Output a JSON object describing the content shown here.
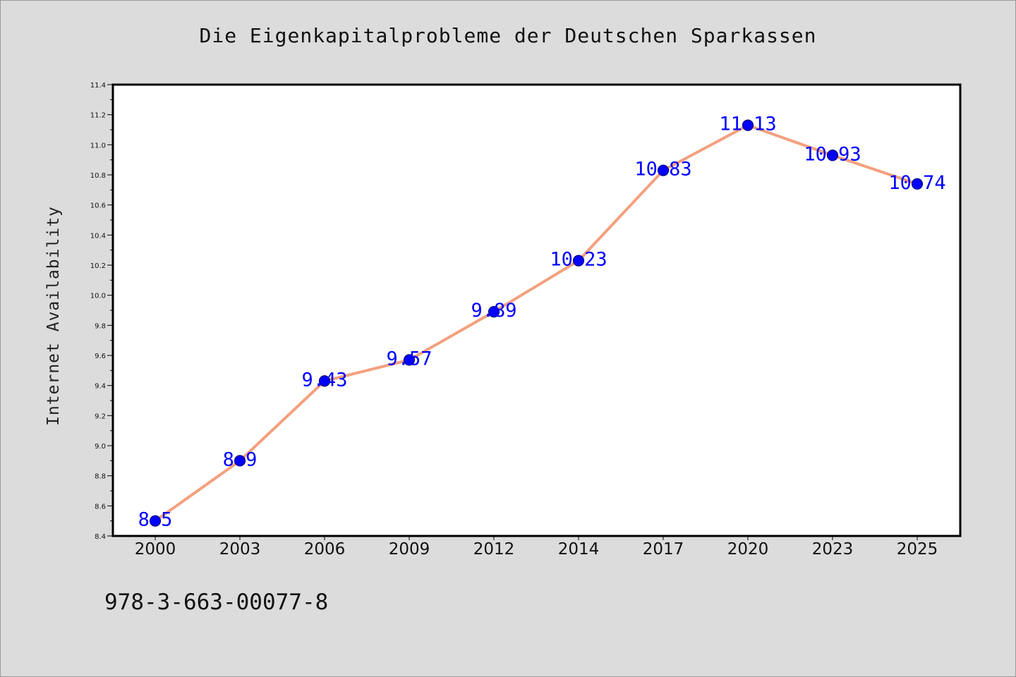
{
  "chart_data": {
    "type": "line",
    "title": "Die Eigenkapitalprobleme der Deutschen Sparkassen",
    "xlabel": "",
    "ylabel": "Internet Availability",
    "categories": [
      "2000",
      "2003",
      "2006",
      "2009",
      "2012",
      "2014",
      "2017",
      "2020",
      "2023",
      "2025"
    ],
    "series": [
      {
        "values": [
          8.5,
          8.9,
          9.43,
          9.57,
          9.89,
          10.23,
          10.83,
          11.13,
          10.93,
          10.74
        ],
        "data_labels": [
          "8.5",
          "8.9",
          "9.43",
          "9.57",
          "9.89",
          "10.23",
          "10.83",
          "11.13",
          "10.93",
          "10.74"
        ]
      }
    ],
    "ylim": [
      8.4,
      11.4
    ],
    "yticks": [
      "8.4",
      "8.6",
      "8.8",
      "9.0",
      "9.2",
      "9.4",
      "9.6",
      "9.8",
      "10.0",
      "10.2",
      "10.4",
      "10.6",
      "10.8",
      "11.0",
      "11.2",
      "11.4"
    ],
    "grid": false,
    "legend": "none",
    "colors": {
      "line": "#f4a07e",
      "marker": "#0000ff",
      "marker_edge": "#00007a",
      "data_label": "#0000ff",
      "plot_bg": "#ffffff",
      "figure_bg": "#dcdcdc"
    }
  },
  "footer": {
    "code": "978-3-663-00077-8"
  }
}
